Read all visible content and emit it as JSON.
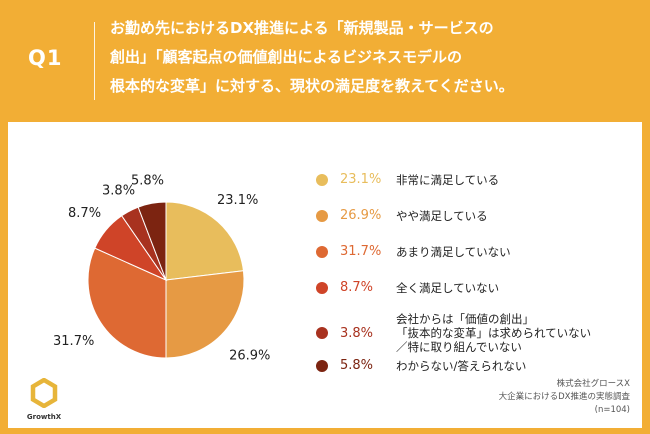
{
  "question": {
    "number": "Q1",
    "lines": [
      "お勤め先におけるDX推進による「新規製品・サービスの",
      "創出」「顧客起点の価値創出によるビジネスモデルの",
      "根本的な変革」に対する、現状の満足度を教えてください。"
    ]
  },
  "chart_data": {
    "type": "pie",
    "slices": [
      {
        "label": "非常に満足している",
        "value": 23.1,
        "display": "23.1%",
        "color": "#e8bd5c"
      },
      {
        "label": "やや満足している",
        "value": 26.9,
        "display": "26.9%",
        "color": "#e69a44"
      },
      {
        "label": "あまり満足していない",
        "value": 31.7,
        "display": "31.7%",
        "color": "#de6933"
      },
      {
        "label": "全く満足していない",
        "value": 8.7,
        "display": "8.7%",
        "color": "#cf4428"
      },
      {
        "label": "会社からは「価値の創出」\n「抜本的な変革」は求められていない\n／特に取り組んでいない",
        "value": 3.8,
        "display": "3.8%",
        "color": "#a8321f"
      },
      {
        "label": "わからない/答えられない",
        "value": 5.8,
        "display": "5.8%",
        "color": "#7c2411"
      }
    ]
  },
  "source": {
    "lines": [
      "株式会社グロースX",
      "大企業におけるDX推進の実態調査",
      "(n=104)"
    ]
  },
  "brand": {
    "name": "GrowthX"
  },
  "colors": {
    "background": "#f2ae35",
    "panel": "#ffffff"
  }
}
